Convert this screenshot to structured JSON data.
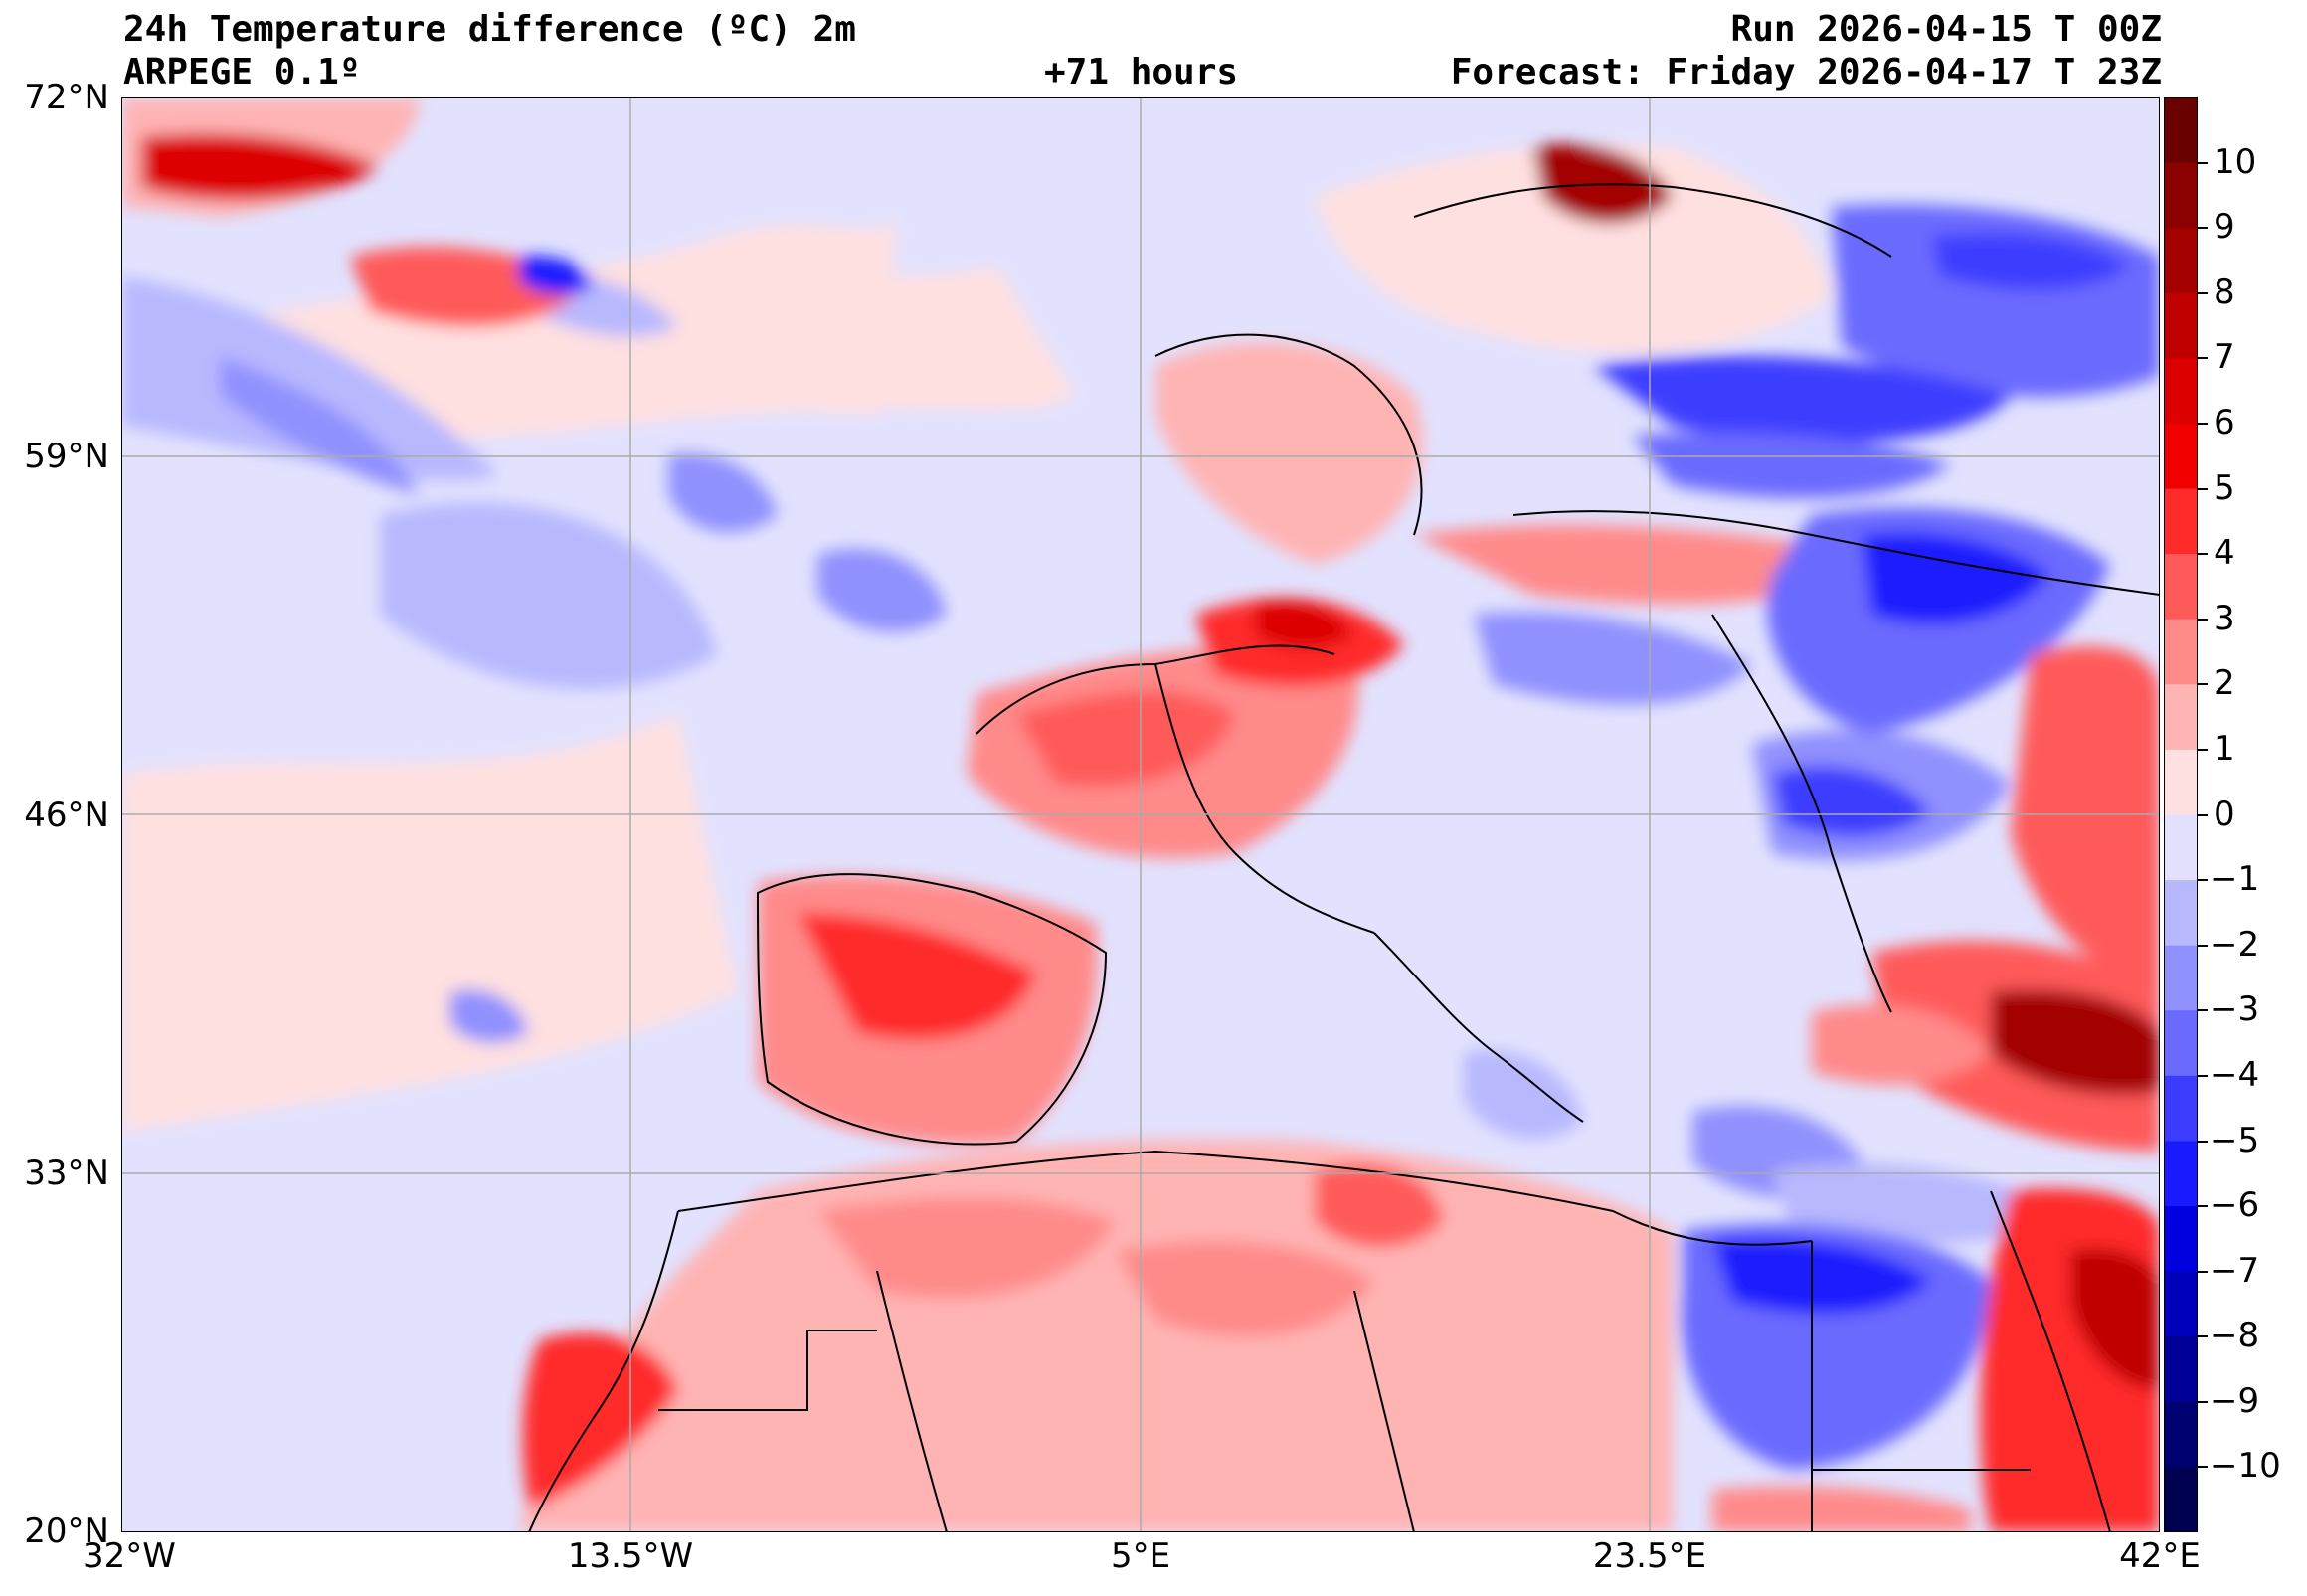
{
  "header": {
    "title": "24h Temperature difference (ºC) 2m",
    "model": "ARPEGE 0.1º",
    "lead_time": "+71 hours",
    "run": "Run 2026-04-15 T 00Z",
    "forecast": "Forecast: Friday 2026-04-17 T 23Z"
  },
  "map": {
    "lat_ticks": [
      "72°N",
      "59°N",
      "46°N",
      "33°N",
      "20°N"
    ],
    "lon_ticks": [
      "32°W",
      "13.5°W",
      "5°E",
      "23.5°E",
      "42°E"
    ],
    "extent": {
      "lon": [
        -32,
        42
      ],
      "lat": [
        20,
        72
      ]
    }
  },
  "colorbar": {
    "labels": [
      "10",
      "9",
      "8",
      "7",
      "6",
      "5",
      "4",
      "3",
      "2",
      "1",
      "0",
      "−1",
      "−2",
      "−3",
      "−4",
      "−5",
      "−6",
      "−7",
      "−8",
      "−9",
      "−10"
    ],
    "levels": [
      11,
      10,
      9,
      8,
      7,
      6,
      5,
      4,
      3,
      2,
      1,
      0,
      -1,
      -2,
      -3,
      -4,
      -5,
      -6,
      -7,
      -8,
      -9,
      -10,
      -11
    ],
    "colors": [
      "#6b0000",
      "#8b0000",
      "#a30000",
      "#c00000",
      "#dc0000",
      "#f20000",
      "#ff2b2b",
      "#ff5a5a",
      "#ff8a8a",
      "#ffb4b4",
      "#ffe0e0",
      "#e2e2ff",
      "#b8b8ff",
      "#9090ff",
      "#6a6aff",
      "#3c3cff",
      "#1a1aff",
      "#0000e0",
      "#0000bb",
      "#000096",
      "#000072",
      "#000050"
    ]
  }
}
